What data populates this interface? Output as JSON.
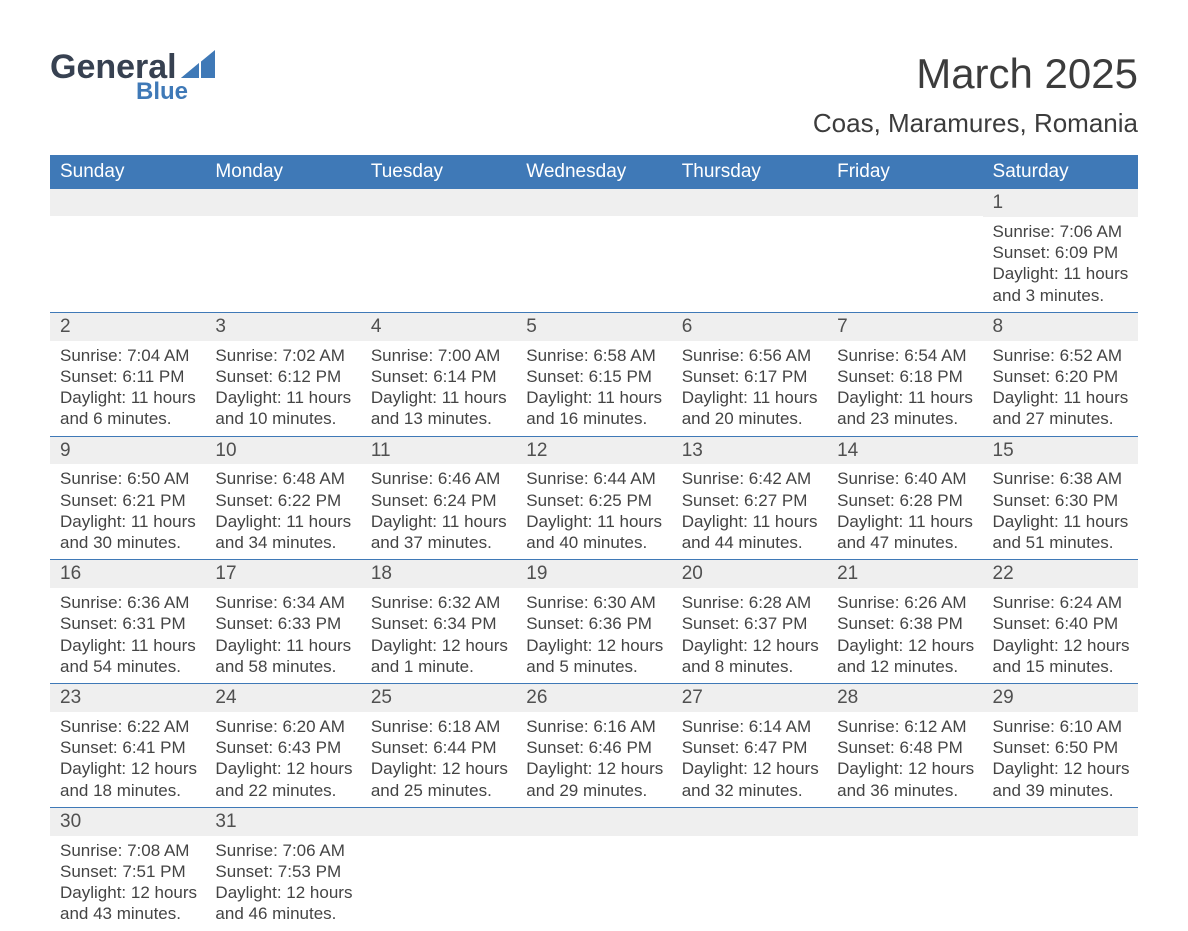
{
  "brand": {
    "main": "General",
    "sub": "Blue"
  },
  "title": "March 2025",
  "location": "Coas, Maramures, Romania",
  "colors": {
    "accent": "#3f79b7",
    "band": "#efefef",
    "text": "#3e3e3e"
  },
  "weekdays": [
    "Sunday",
    "Monday",
    "Tuesday",
    "Wednesday",
    "Thursday",
    "Friday",
    "Saturday"
  ],
  "weeks": [
    [
      null,
      null,
      null,
      null,
      null,
      null,
      {
        "n": "1",
        "sunrise": "Sunrise: 7:06 AM",
        "sunset": "Sunset: 6:09 PM",
        "d1": "Daylight: 11 hours",
        "d2": "and 3 minutes."
      }
    ],
    [
      {
        "n": "2",
        "sunrise": "Sunrise: 7:04 AM",
        "sunset": "Sunset: 6:11 PM",
        "d1": "Daylight: 11 hours",
        "d2": "and 6 minutes."
      },
      {
        "n": "3",
        "sunrise": "Sunrise: 7:02 AM",
        "sunset": "Sunset: 6:12 PM",
        "d1": "Daylight: 11 hours",
        "d2": "and 10 minutes."
      },
      {
        "n": "4",
        "sunrise": "Sunrise: 7:00 AM",
        "sunset": "Sunset: 6:14 PM",
        "d1": "Daylight: 11 hours",
        "d2": "and 13 minutes."
      },
      {
        "n": "5",
        "sunrise": "Sunrise: 6:58 AM",
        "sunset": "Sunset: 6:15 PM",
        "d1": "Daylight: 11 hours",
        "d2": "and 16 minutes."
      },
      {
        "n": "6",
        "sunrise": "Sunrise: 6:56 AM",
        "sunset": "Sunset: 6:17 PM",
        "d1": "Daylight: 11 hours",
        "d2": "and 20 minutes."
      },
      {
        "n": "7",
        "sunrise": "Sunrise: 6:54 AM",
        "sunset": "Sunset: 6:18 PM",
        "d1": "Daylight: 11 hours",
        "d2": "and 23 minutes."
      },
      {
        "n": "8",
        "sunrise": "Sunrise: 6:52 AM",
        "sunset": "Sunset: 6:20 PM",
        "d1": "Daylight: 11 hours",
        "d2": "and 27 minutes."
      }
    ],
    [
      {
        "n": "9",
        "sunrise": "Sunrise: 6:50 AM",
        "sunset": "Sunset: 6:21 PM",
        "d1": "Daylight: 11 hours",
        "d2": "and 30 minutes."
      },
      {
        "n": "10",
        "sunrise": "Sunrise: 6:48 AM",
        "sunset": "Sunset: 6:22 PM",
        "d1": "Daylight: 11 hours",
        "d2": "and 34 minutes."
      },
      {
        "n": "11",
        "sunrise": "Sunrise: 6:46 AM",
        "sunset": "Sunset: 6:24 PM",
        "d1": "Daylight: 11 hours",
        "d2": "and 37 minutes."
      },
      {
        "n": "12",
        "sunrise": "Sunrise: 6:44 AM",
        "sunset": "Sunset: 6:25 PM",
        "d1": "Daylight: 11 hours",
        "d2": "and 40 minutes."
      },
      {
        "n": "13",
        "sunrise": "Sunrise: 6:42 AM",
        "sunset": "Sunset: 6:27 PM",
        "d1": "Daylight: 11 hours",
        "d2": "and 44 minutes."
      },
      {
        "n": "14",
        "sunrise": "Sunrise: 6:40 AM",
        "sunset": "Sunset: 6:28 PM",
        "d1": "Daylight: 11 hours",
        "d2": "and 47 minutes."
      },
      {
        "n": "15",
        "sunrise": "Sunrise: 6:38 AM",
        "sunset": "Sunset: 6:30 PM",
        "d1": "Daylight: 11 hours",
        "d2": "and 51 minutes."
      }
    ],
    [
      {
        "n": "16",
        "sunrise": "Sunrise: 6:36 AM",
        "sunset": "Sunset: 6:31 PM",
        "d1": "Daylight: 11 hours",
        "d2": "and 54 minutes."
      },
      {
        "n": "17",
        "sunrise": "Sunrise: 6:34 AM",
        "sunset": "Sunset: 6:33 PM",
        "d1": "Daylight: 11 hours",
        "d2": "and 58 minutes."
      },
      {
        "n": "18",
        "sunrise": "Sunrise: 6:32 AM",
        "sunset": "Sunset: 6:34 PM",
        "d1": "Daylight: 12 hours",
        "d2": "and 1 minute."
      },
      {
        "n": "19",
        "sunrise": "Sunrise: 6:30 AM",
        "sunset": "Sunset: 6:36 PM",
        "d1": "Daylight: 12 hours",
        "d2": "and 5 minutes."
      },
      {
        "n": "20",
        "sunrise": "Sunrise: 6:28 AM",
        "sunset": "Sunset: 6:37 PM",
        "d1": "Daylight: 12 hours",
        "d2": "and 8 minutes."
      },
      {
        "n": "21",
        "sunrise": "Sunrise: 6:26 AM",
        "sunset": "Sunset: 6:38 PM",
        "d1": "Daylight: 12 hours",
        "d2": "and 12 minutes."
      },
      {
        "n": "22",
        "sunrise": "Sunrise: 6:24 AM",
        "sunset": "Sunset: 6:40 PM",
        "d1": "Daylight: 12 hours",
        "d2": "and 15 minutes."
      }
    ],
    [
      {
        "n": "23",
        "sunrise": "Sunrise: 6:22 AM",
        "sunset": "Sunset: 6:41 PM",
        "d1": "Daylight: 12 hours",
        "d2": "and 18 minutes."
      },
      {
        "n": "24",
        "sunrise": "Sunrise: 6:20 AM",
        "sunset": "Sunset: 6:43 PM",
        "d1": "Daylight: 12 hours",
        "d2": "and 22 minutes."
      },
      {
        "n": "25",
        "sunrise": "Sunrise: 6:18 AM",
        "sunset": "Sunset: 6:44 PM",
        "d1": "Daylight: 12 hours",
        "d2": "and 25 minutes."
      },
      {
        "n": "26",
        "sunrise": "Sunrise: 6:16 AM",
        "sunset": "Sunset: 6:46 PM",
        "d1": "Daylight: 12 hours",
        "d2": "and 29 minutes."
      },
      {
        "n": "27",
        "sunrise": "Sunrise: 6:14 AM",
        "sunset": "Sunset: 6:47 PM",
        "d1": "Daylight: 12 hours",
        "d2": "and 32 minutes."
      },
      {
        "n": "28",
        "sunrise": "Sunrise: 6:12 AM",
        "sunset": "Sunset: 6:48 PM",
        "d1": "Daylight: 12 hours",
        "d2": "and 36 minutes."
      },
      {
        "n": "29",
        "sunrise": "Sunrise: 6:10 AM",
        "sunset": "Sunset: 6:50 PM",
        "d1": "Daylight: 12 hours",
        "d2": "and 39 minutes."
      }
    ],
    [
      {
        "n": "30",
        "sunrise": "Sunrise: 7:08 AM",
        "sunset": "Sunset: 7:51 PM",
        "d1": "Daylight: 12 hours",
        "d2": "and 43 minutes."
      },
      {
        "n": "31",
        "sunrise": "Sunrise: 7:06 AM",
        "sunset": "Sunset: 7:53 PM",
        "d1": "Daylight: 12 hours",
        "d2": "and 46 minutes."
      },
      null,
      null,
      null,
      null,
      null
    ]
  ]
}
